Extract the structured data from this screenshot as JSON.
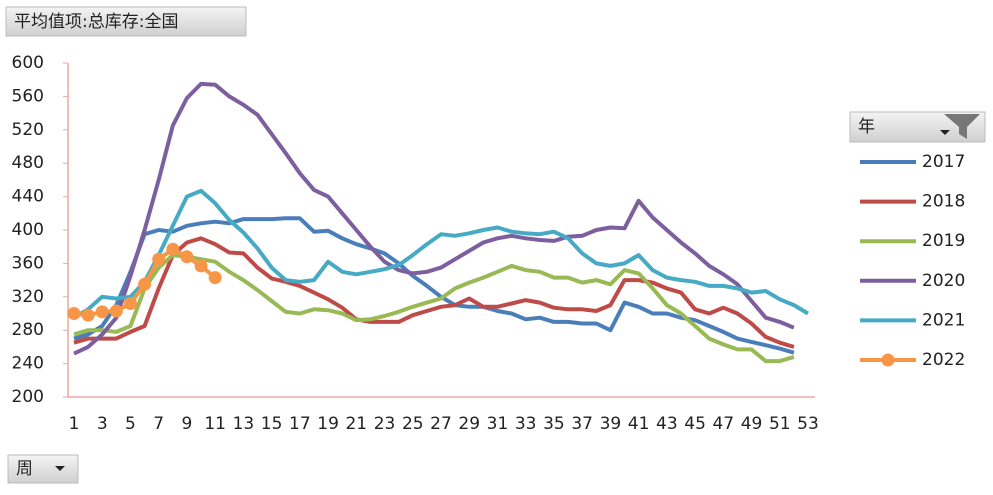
{
  "chart_data": {
    "type": "line",
    "filter_label": "平均值项:总库存:全国",
    "legend_title": "年",
    "x_field_label": "周",
    "categories": [
      1,
      null,
      3,
      null,
      5,
      null,
      7,
      null,
      9,
      null,
      11,
      null,
      13,
      null,
      15,
      null,
      17,
      null,
      19,
      null,
      21,
      null,
      23,
      null,
      25,
      null,
      27,
      null,
      29,
      null,
      31,
      null,
      33,
      null,
      35,
      null,
      37,
      null,
      39,
      null,
      41,
      null,
      43,
      null,
      45,
      null,
      47,
      null,
      49,
      null,
      51,
      null,
      53
    ],
    "ylim": [
      200,
      600
    ],
    "yticks": [
      200,
      240,
      280,
      320,
      360,
      400,
      440,
      480,
      520,
      560,
      600
    ],
    "grid": false,
    "legend": "right",
    "series": [
      {
        "name": "2017",
        "color": "#4a7ebb",
        "values": [
          270,
          275,
          285,
          310,
          350,
          395,
          400,
          398,
          405,
          408,
          410,
          408,
          413,
          413,
          413,
          414,
          414,
          398,
          399,
          390,
          383,
          378,
          372,
          360,
          345,
          333,
          320,
          310,
          308,
          308,
          303,
          300,
          293,
          295,
          290,
          290,
          288,
          288,
          280,
          313,
          308,
          300,
          300,
          295,
          292,
          285,
          278,
          270,
          266,
          262,
          258,
          253,
          null
        ]
      },
      {
        "name": "2018",
        "color": "#be4b48",
        "values": [
          265,
          270,
          270,
          270,
          278,
          285,
          330,
          370,
          385,
          390,
          383,
          373,
          372,
          355,
          342,
          338,
          333,
          325,
          317,
          307,
          293,
          290,
          290,
          290,
          298,
          303,
          308,
          310,
          318,
          308,
          308,
          312,
          316,
          313,
          307,
          305,
          305,
          303,
          310,
          340,
          340,
          337,
          330,
          325,
          305,
          300,
          307,
          300,
          288,
          272,
          265,
          260,
          null
        ]
      },
      {
        "name": "2019",
        "color": "#98b954",
        "values": [
          275,
          280,
          280,
          278,
          285,
          330,
          355,
          370,
          368,
          365,
          362,
          350,
          340,
          328,
          315,
          302,
          300,
          305,
          304,
          300,
          292,
          293,
          297,
          302,
          308,
          313,
          318,
          330,
          337,
          343,
          350,
          357,
          352,
          350,
          343,
          343,
          337,
          340,
          335,
          352,
          348,
          330,
          310,
          300,
          285,
          270,
          263,
          257,
          257,
          243,
          243,
          248,
          null
        ]
      },
      {
        "name": "2020",
        "color": "#7d5fa0",
        "values": [
          252,
          260,
          275,
          295,
          345,
          400,
          460,
          525,
          558,
          575,
          574,
          560,
          550,
          538,
          515,
          492,
          468,
          448,
          440,
          420,
          400,
          380,
          362,
          352,
          348,
          350,
          355,
          365,
          375,
          385,
          390,
          393,
          390,
          388,
          387,
          392,
          393,
          400,
          403,
          402,
          435,
          415,
          400,
          385,
          372,
          357,
          347,
          335,
          315,
          295,
          290,
          283,
          null
        ]
      },
      {
        "name": "2021",
        "color": "#46aac5",
        "values": [
          295,
          305,
          320,
          318,
          320,
          338,
          370,
          405,
          440,
          447,
          432,
          412,
          397,
          378,
          355,
          340,
          338,
          340,
          362,
          350,
          347,
          350,
          353,
          358,
          370,
          383,
          395,
          393,
          396,
          400,
          403,
          398,
          396,
          395,
          398,
          390,
          372,
          360,
          357,
          360,
          370,
          352,
          343,
          340,
          338,
          333,
          333,
          330,
          325,
          327,
          317,
          310,
          300
        ]
      },
      {
        "name": "2022",
        "color": "#f79646",
        "markers": true,
        "values": [
          300,
          298,
          302,
          303,
          312,
          335,
          365,
          377,
          368,
          357,
          343,
          null,
          null,
          null,
          null,
          null,
          null,
          null,
          null,
          null,
          null,
          null,
          null,
          null,
          null,
          null,
          null,
          null,
          null,
          null,
          null,
          null,
          null,
          null,
          null,
          null,
          null,
          null,
          null,
          null,
          null,
          null,
          null,
          null,
          null,
          null,
          null,
          null,
          null,
          null,
          null,
          null,
          null
        ]
      }
    ]
  }
}
